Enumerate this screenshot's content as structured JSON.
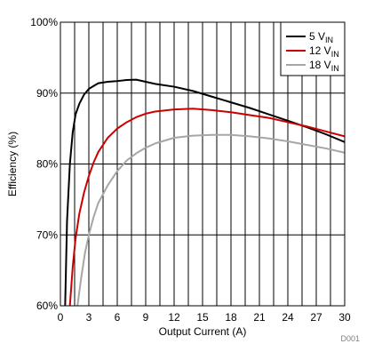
{
  "chart_data": {
    "type": "line",
    "xlabel": "Output Current (A)",
    "ylabel": "Efficiency (%)",
    "xlim": [
      0,
      30
    ],
    "ylim": [
      60,
      100
    ],
    "x_ticks": [
      "0",
      "3",
      "6",
      "9",
      "12",
      "15",
      "18",
      "21",
      "24",
      "27",
      "30"
    ],
    "y_ticks": [
      "60%",
      "70%",
      "80%",
      "90%",
      "100%"
    ],
    "grid": true,
    "legend_position": "top-right",
    "series": [
      {
        "name": "5 V",
        "name_sub": "IN",
        "color": "#000000",
        "x": [
          0.5,
          0.7,
          1.0,
          1.3,
          1.6,
          2.0,
          2.5,
          3.0,
          3.5,
          4.0,
          5.0,
          6.0,
          7.0,
          8.0,
          9.0,
          10,
          12,
          14,
          16,
          18,
          20,
          22,
          24,
          26,
          28,
          30
        ],
        "y": [
          60.0,
          72.0,
          80.0,
          84.5,
          87.0,
          88.5,
          89.8,
          90.6,
          91.0,
          91.4,
          91.6,
          91.7,
          91.85,
          91.9,
          91.6,
          91.3,
          90.9,
          90.3,
          89.5,
          88.7,
          87.9,
          87.0,
          86.1,
          85.2,
          84.2,
          83.1
        ]
      },
      {
        "name": "12 V",
        "name_sub": "IN",
        "color": "#cc0000",
        "x": [
          1.0,
          1.3,
          1.6,
          2.0,
          2.5,
          3.0,
          3.5,
          4.0,
          5.0,
          6.0,
          7.0,
          8.0,
          9.0,
          10,
          12,
          14,
          16,
          18,
          20,
          22,
          24,
          26,
          28,
          30
        ],
        "y": [
          60.0,
          65.5,
          69.5,
          73.0,
          76.0,
          78.3,
          80.2,
          81.7,
          83.7,
          85.0,
          85.9,
          86.6,
          87.1,
          87.4,
          87.7,
          87.8,
          87.6,
          87.3,
          86.9,
          86.5,
          85.9,
          85.3,
          84.6,
          83.9
        ]
      },
      {
        "name": "18 V",
        "name_sub": "IN",
        "color": "#a6a6a6",
        "x": [
          1.8,
          2.2,
          2.6,
          3.0,
          3.5,
          4.0,
          5.0,
          6.0,
          7.0,
          8.0,
          9.0,
          10,
          12,
          14,
          16,
          18,
          20,
          22,
          24,
          26,
          28,
          30
        ],
        "y": [
          60.0,
          64.0,
          67.5,
          70.0,
          72.5,
          74.5,
          77.0,
          79.0,
          80.5,
          81.5,
          82.3,
          82.9,
          83.7,
          84.0,
          84.1,
          84.1,
          83.9,
          83.6,
          83.2,
          82.7,
          82.2,
          81.6
        ]
      }
    ]
  },
  "doc_id": "D001"
}
